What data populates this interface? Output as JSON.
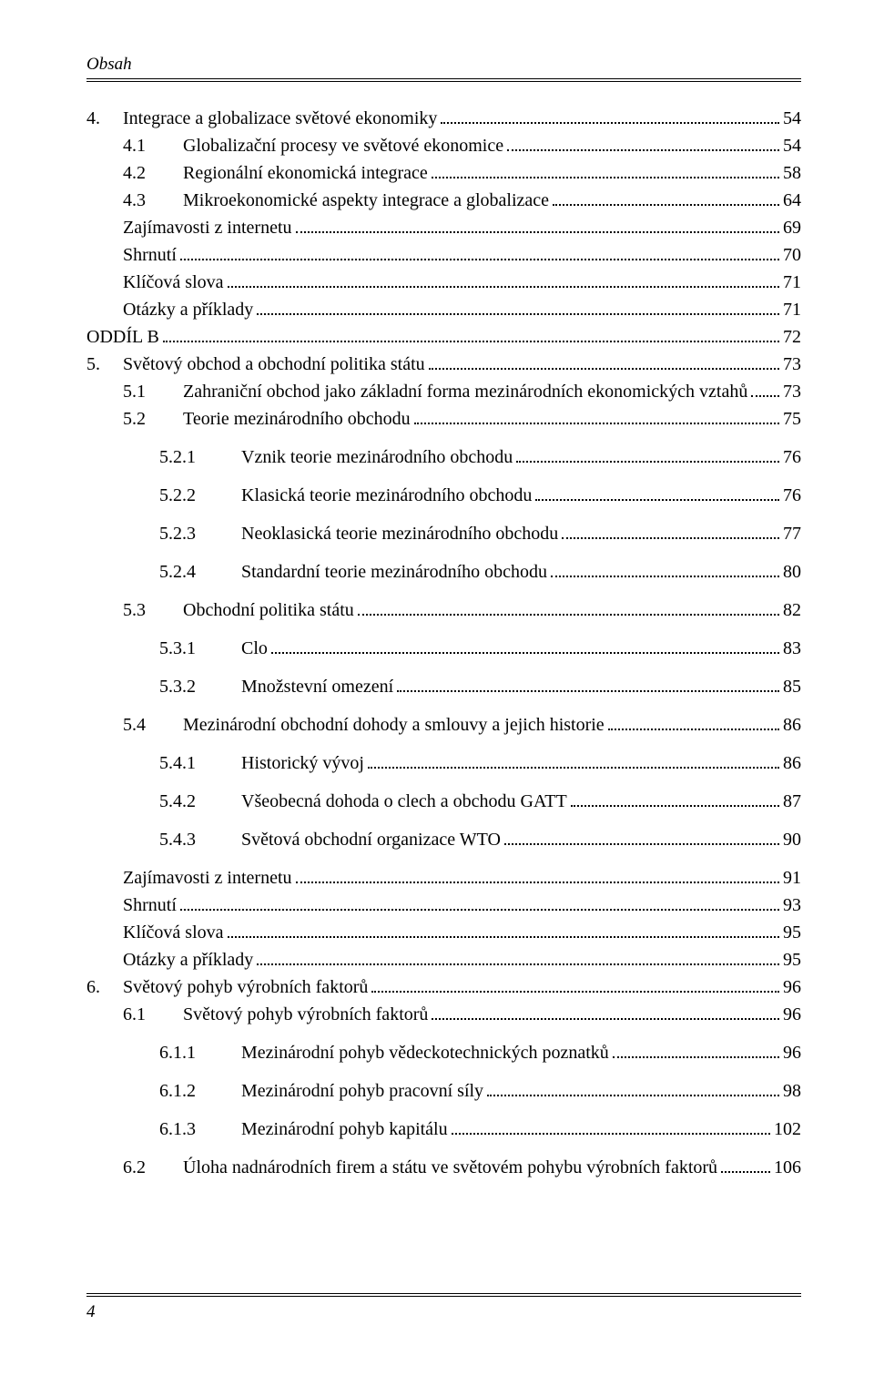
{
  "header": "Obsah",
  "footer_page": "4",
  "entries": [
    {
      "level": "l0",
      "num": "4.",
      "title": "Integrace a globalizace světové ekonomiky",
      "page": "54",
      "gap": false
    },
    {
      "level": "l1",
      "num": "4.1",
      "title": "Globalizační procesy ve světové ekonomice",
      "page": "54",
      "gap": false
    },
    {
      "level": "l1",
      "num": "4.2",
      "title": "Regionální ekonomická integrace",
      "page": "58",
      "gap": false
    },
    {
      "level": "l1",
      "num": "4.3",
      "title": "Mikroekonomické aspekty integrace a globalizace",
      "page": "64",
      "gap": false
    },
    {
      "level": "l1b",
      "num": "",
      "title": "Zajímavosti z internetu",
      "page": "69",
      "gap": false
    },
    {
      "level": "l1b",
      "num": "",
      "title": "Shrnutí",
      "page": "70",
      "gap": false
    },
    {
      "level": "l1b",
      "num": "",
      "title": "Klíčová slova",
      "page": "71",
      "gap": false
    },
    {
      "level": "l1b",
      "num": "",
      "title": "Otázky a příklady",
      "page": "71",
      "gap": false
    },
    {
      "level": "l0b",
      "num": "",
      "title": "ODDÍL B",
      "page": "72",
      "gap": false
    },
    {
      "level": "l0",
      "num": "5.",
      "title": "Světový obchod a obchodní politika státu",
      "page": "73",
      "gap": false
    },
    {
      "level": "l1",
      "num": "5.1",
      "title": "Zahraniční obchod jako základní forma mezinárodních ekonomických vztahů",
      "page": "73",
      "gap": false
    },
    {
      "level": "l1",
      "num": "5.2",
      "title": "Teorie mezinárodního obchodu",
      "page": "75",
      "gap": false
    },
    {
      "level": "l2",
      "num": "5.2.1",
      "title": "Vznik teorie mezinárodního obchodu",
      "page": "76",
      "gap": true
    },
    {
      "level": "l2",
      "num": "5.2.2",
      "title": "Klasická teorie mezinárodního obchodu",
      "page": "76",
      "gap": true
    },
    {
      "level": "l2",
      "num": "5.2.3",
      "title": "Neoklasická teorie mezinárodního obchodu",
      "page": "77",
      "gap": true
    },
    {
      "level": "l2",
      "num": "5.2.4",
      "title": "Standardní teorie mezinárodního obchodu",
      "page": "80",
      "gap": true
    },
    {
      "level": "l1",
      "num": "5.3",
      "title": "Obchodní politika státu",
      "page": "82",
      "gap": true
    },
    {
      "level": "l2",
      "num": "5.3.1",
      "title": "Clo",
      "page": "83",
      "gap": true
    },
    {
      "level": "l2",
      "num": "5.3.2",
      "title": "Množstevní omezení",
      "page": "85",
      "gap": true
    },
    {
      "level": "l1",
      "num": "5.4",
      "title": "Mezinárodní obchodní dohody a smlouvy a jejich historie",
      "page": "86",
      "gap": true
    },
    {
      "level": "l2",
      "num": "5.4.1",
      "title": "Historický vývoj",
      "page": "86",
      "gap": true
    },
    {
      "level": "l2",
      "num": "5.4.2",
      "title": "Všeobecná dohoda o clech a obchodu GATT",
      "page": "87",
      "gap": true
    },
    {
      "level": "l2",
      "num": "5.4.3",
      "title": "Světová obchodní organizace WTO",
      "page": "90",
      "gap": true
    },
    {
      "level": "l1b",
      "num": "",
      "title": "Zajímavosti z internetu",
      "page": "91",
      "gap": true
    },
    {
      "level": "l1b",
      "num": "",
      "title": "Shrnutí",
      "page": "93",
      "gap": false
    },
    {
      "level": "l1b",
      "num": "",
      "title": "Klíčová slova",
      "page": "95",
      "gap": false
    },
    {
      "level": "l1b",
      "num": "",
      "title": "Otázky a příklady",
      "page": "95",
      "gap": false
    },
    {
      "level": "l0",
      "num": "6.",
      "title": "Světový pohyb výrobních faktorů",
      "page": "96",
      "gap": false
    },
    {
      "level": "l1",
      "num": "6.1",
      "title": "Světový pohyb výrobních faktorů",
      "page": "96",
      "gap": false
    },
    {
      "level": "l2",
      "num": "6.1.1",
      "title": "Mezinárodní pohyb vědeckotechnických poznatků",
      "page": "96",
      "gap": true
    },
    {
      "level": "l2",
      "num": "6.1.2",
      "title": "Mezinárodní pohyb pracovní síly",
      "page": "98",
      "gap": true
    },
    {
      "level": "l2",
      "num": "6.1.3",
      "title": "Mezinárodní pohyb kapitálu",
      "page": "102",
      "gap": true
    },
    {
      "level": "l1",
      "num": "6.2",
      "title": "Úloha nadnárodních firem a státu ve světovém pohybu výrobních faktorů",
      "page": "106",
      "gap": true
    }
  ]
}
